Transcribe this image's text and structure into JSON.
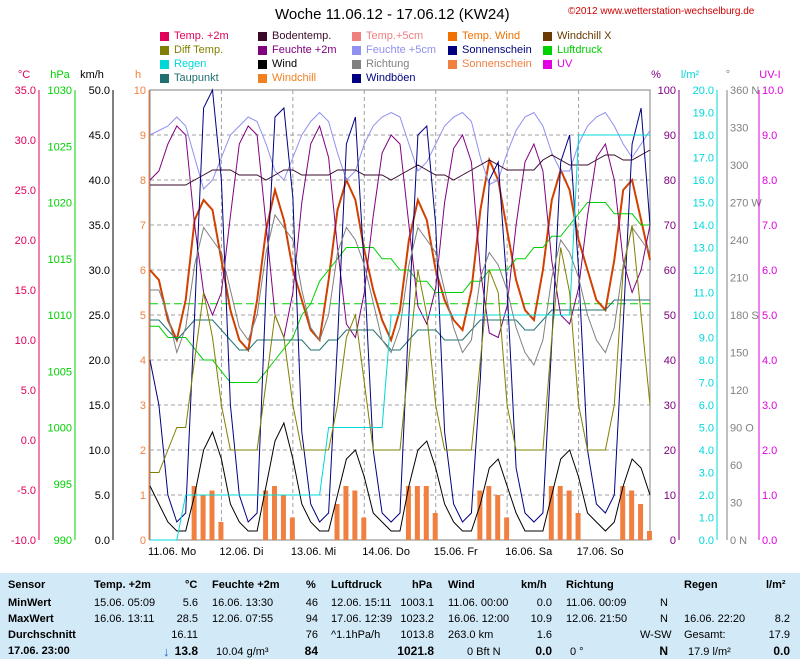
{
  "header": {
    "title": "Woche 11.06.12 - 17.06.12 (KW24)",
    "copyright": "©2012 www.wetterstation-wechselburg.de"
  },
  "legend": [
    {
      "label": "Temp. +2m",
      "color": "#e0005a"
    },
    {
      "label": "Bodentemp.",
      "color": "#3a0a2a"
    },
    {
      "label": "Temp.+5cm",
      "color": "#f08080"
    },
    {
      "label": "Temp. Wind",
      "color": "#f07000"
    },
    {
      "label": "Windchill X",
      "color": "#6a3a00"
    },
    {
      "label": "Diff Temp.",
      "color": "#808000"
    },
    {
      "label": "Feuchte +2m",
      "color": "#800080"
    },
    {
      "label": "Feuchte +5cm",
      "color": "#9090f0"
    },
    {
      "label": "Sonnenschein",
      "color": "#000080"
    },
    {
      "label": "Luftdruck",
      "color": "#00d000"
    },
    {
      "label": "Regen",
      "color": "#00d8d8"
    },
    {
      "label": "Wind",
      "color": "#000000"
    },
    {
      "label": "Richtung",
      "color": "#808080"
    },
    {
      "label": "Sonnenschein",
      "color": "#f08040"
    },
    {
      "label": "UV",
      "color": "#e000e0"
    },
    {
      "label": "Taupunkt",
      "color": "#207070"
    },
    {
      "label": "Windchill",
      "color": "#f08020"
    },
    {
      "label": "Windböen",
      "color": "#000080"
    }
  ],
  "chart_data": {
    "type": "line",
    "title": "Woche 11.06.12 - 17.06.12 (KW24)",
    "x_labels": [
      "11.06. Mo",
      "12.06. Di",
      "13.06. Mi",
      "14.06. Do",
      "15.06. Fr",
      "16.06. Sa",
      "17.06. So"
    ],
    "axes": {
      "temp": {
        "unit": "°C",
        "color": "#e0005a",
        "ticks": [
          "35.0",
          "30.0",
          "25.0",
          "20.0",
          "15.0",
          "10.0",
          "5.0",
          "0.0",
          "-5.0",
          "-10.0"
        ]
      },
      "pressure": {
        "unit": "hPa",
        "color": "#00d000",
        "ticks": [
          "1030",
          "1025",
          "1020",
          "1015",
          "1010",
          "1005",
          "1000",
          "995",
          "990"
        ]
      },
      "wind": {
        "unit": "km/h",
        "color": "#000000",
        "ticks": [
          "50.0",
          "45.0",
          "40.0",
          "35.0",
          "30.0",
          "25.0",
          "20.0",
          "15.0",
          "10.0",
          "5.0",
          "0.0"
        ]
      },
      "sun": {
        "unit": "h",
        "color": "#f08040",
        "ticks": [
          "10",
          "9",
          "8",
          "7",
          "6",
          "5",
          "4",
          "3",
          "2",
          "1",
          "0"
        ]
      },
      "humidity": {
        "unit": "%",
        "color": "#800080",
        "ticks": [
          "100",
          "90",
          "80",
          "70",
          "60",
          "50",
          "40",
          "30",
          "20",
          "10",
          "0"
        ]
      },
      "rain": {
        "unit": "l/m²",
        "color": "#00d8d8",
        "ticks": [
          "20.0",
          "19.0",
          "18.0",
          "17.0",
          "16.0",
          "15.0",
          "14.0",
          "13.0",
          "12.0",
          "11.0",
          "10.0",
          "9.0",
          "8.0",
          "7.0",
          "6.0",
          "5.0",
          "4.0",
          "3.0",
          "2.0",
          "1.0",
          "0.0"
        ]
      },
      "direction": {
        "unit": "°",
        "color": "#808080",
        "ticks": [
          "360 N",
          "330",
          "300",
          "270 W",
          "240",
          "210",
          "180 S",
          "150",
          "120",
          "90 O",
          "60",
          "30",
          "0 N"
        ]
      },
      "uv": {
        "unit": "UV-I",
        "color": "#e000e0",
        "ticks": [
          "10.0",
          "9.0",
          "8.0",
          "7.0",
          "6.0",
          "5.0",
          "4.0",
          "3.0",
          "2.0",
          "1.0",
          "0.0"
        ]
      }
    },
    "ylim_temp": [
      -10,
      35
    ],
    "series": [
      {
        "name": "Temp. +2m",
        "color": "#e0005a",
        "values": [
          17,
          16,
          12,
          10,
          14,
          22,
          24,
          23,
          18,
          13,
          10,
          9,
          14,
          21,
          25,
          22,
          17,
          14,
          11,
          10,
          16,
          23,
          26,
          24,
          19,
          15,
          12,
          10,
          13,
          20,
          24,
          22,
          17,
          14,
          12,
          11,
          15,
          23,
          28,
          26,
          21,
          16,
          13,
          12,
          17,
          24,
          27,
          25,
          20,
          17,
          14,
          13,
          18,
          25,
          26,
          22,
          18
        ]
      },
      {
        "name": "Luftdruck",
        "values": [
          1009,
          1009,
          1008,
          1008,
          1008,
          1007,
          1006,
          1006,
          1005,
          1004,
          1004,
          1004,
          1004,
          1005,
          1006,
          1007,
          1008,
          1010,
          1011,
          1013,
          1014,
          1015,
          1016,
          1016,
          1016,
          1016,
          1015,
          1015,
          1014,
          1014,
          1013,
          1013,
          1012,
          1012,
          1012,
          1012,
          1013,
          1013,
          1014,
          1014,
          1014,
          1015,
          1015,
          1016,
          1016,
          1017,
          1017,
          1018,
          1019,
          1020,
          1020,
          1020,
          1019,
          1019,
          1019,
          1018,
          1018
        ]
      },
      {
        "name": "Feuchte +2m",
        "values": [
          80,
          82,
          88,
          92,
          90,
          70,
          55,
          50,
          55,
          72,
          88,
          92,
          90,
          70,
          50,
          45,
          55,
          75,
          88,
          92,
          85,
          65,
          48,
          45,
          55,
          72,
          86,
          90,
          88,
          70,
          52,
          48,
          56,
          75,
          87,
          90,
          84,
          60,
          46,
          45,
          52,
          70,
          84,
          88,
          82,
          62,
          50,
          48,
          56,
          72,
          85,
          88,
          80,
          62,
          55,
          60,
          70
        ]
      },
      {
        "name": "Feuchte +5cm",
        "values": [
          90,
          91,
          92,
          94,
          92,
          85,
          78,
          80,
          85,
          90,
          92,
          94,
          93,
          88,
          82,
          80,
          85,
          90,
          93,
          95,
          93,
          86,
          80,
          82,
          88,
          92,
          94,
          95,
          94,
          88,
          82,
          84,
          88,
          92,
          94,
          95,
          93,
          85,
          79,
          80,
          86,
          91,
          94,
          95,
          92,
          86,
          82,
          82,
          88,
          92,
          94,
          95,
          92,
          88,
          85,
          88,
          91
        ]
      },
      {
        "name": "Bodentemp.",
        "values": [
          25.5,
          25.5,
          25.5,
          25.5,
          25.5,
          26,
          26.5,
          27,
          27,
          27,
          26.5,
          26.5,
          26.5,
          26,
          26.5,
          27,
          27,
          26.5,
          26.5,
          26.5,
          26.5,
          27,
          27,
          27,
          26.5,
          26.5,
          26.5,
          26,
          26.5,
          27,
          27.5,
          27,
          26.5,
          26.5,
          26,
          26.5,
          27,
          27.5,
          28,
          27.5,
          27,
          27,
          27,
          27,
          28,
          28.5,
          28,
          27.5,
          27.5,
          27.5,
          28,
          28.5,
          28.5,
          28,
          28,
          28.5,
          29
        ]
      },
      {
        "name": "Taupunkt",
        "values": [
          12,
          12,
          11,
          10,
          11,
          12,
          12,
          12,
          11,
          10,
          9,
          9,
          10,
          10,
          10,
          10,
          10,
          10,
          9,
          9,
          10,
          10,
          11,
          11,
          11,
          11,
          10,
          9,
          9,
          10,
          11,
          11,
          11,
          10,
          10,
          10,
          11,
          12,
          12,
          12,
          12,
          12,
          11,
          11,
          12,
          13,
          13,
          13,
          13,
          13,
          13,
          13,
          14,
          14,
          14,
          14,
          14
        ]
      },
      {
        "name": "Wind",
        "values": [
          6,
          4,
          2,
          1,
          1,
          5,
          10,
          12,
          9,
          4,
          2,
          1,
          1,
          6,
          11,
          13,
          9,
          4,
          2,
          1,
          1,
          5,
          9,
          10,
          7,
          3,
          2,
          1,
          1,
          6,
          10,
          11,
          8,
          4,
          2,
          1,
          1,
          4,
          8,
          9,
          6,
          3,
          1,
          1,
          1,
          5,
          9,
          10,
          7,
          3,
          2,
          1,
          2,
          6,
          9,
          8,
          5
        ]
      },
      {
        "name": "Windböen",
        "values": [
          20,
          15,
          5,
          2,
          3,
          25,
          48,
          50,
          40,
          15,
          5,
          2,
          3,
          28,
          47,
          48,
          38,
          12,
          4,
          2,
          3,
          22,
          44,
          47,
          30,
          10,
          3,
          2,
          3,
          25,
          45,
          46,
          35,
          12,
          4,
          2,
          3,
          18,
          40,
          42,
          28,
          8,
          3,
          2,
          3,
          22,
          42,
          45,
          30,
          10,
          4,
          3,
          5,
          24,
          44,
          48,
          35
        ]
      },
      {
        "name": "Richtung",
        "values": [
          200,
          200,
          180,
          150,
          170,
          220,
          250,
          240,
          230,
          200,
          170,
          160,
          180,
          230,
          260,
          250,
          240,
          200,
          170,
          160,
          180,
          230,
          250,
          240,
          220,
          190,
          160,
          150,
          170,
          220,
          250,
          240,
          230,
          200,
          170,
          150,
          160,
          210,
          230,
          220,
          200,
          170,
          150,
          140,
          160,
          210,
          240,
          230,
          210,
          180,
          160,
          150,
          170,
          220,
          250,
          240,
          230
        ]
      },
      {
        "name": "Sonnenschein",
        "values": [
          0,
          0,
          0,
          0,
          0,
          1.2,
          1,
          1.1,
          0.4,
          0,
          0,
          0,
          0,
          1.1,
          1.2,
          1,
          0.5,
          0,
          0,
          0,
          0,
          0.8,
          1.2,
          1.1,
          0.5,
          0,
          0,
          0,
          0,
          1.2,
          1.2,
          1.2,
          0.6,
          0,
          0,
          0,
          0,
          1.1,
          1.2,
          1,
          0.5,
          0,
          0,
          0,
          0,
          1.2,
          1.2,
          1.1,
          0.6,
          0,
          0,
          0,
          0,
          1.2,
          1.1,
          0.8,
          0.2
        ]
      },
      {
        "name": "Regen",
        "values": [
          0,
          0,
          0,
          0,
          2,
          2,
          2,
          2,
          2,
          2,
          2,
          2,
          2,
          2,
          2,
          2,
          2,
          2,
          2,
          2,
          5,
          5,
          5,
          5,
          5,
          5,
          5,
          10,
          10,
          10,
          10,
          10,
          10,
          10,
          10,
          10,
          10,
          10,
          10,
          10,
          10,
          10,
          10,
          10,
          10,
          10,
          10,
          10,
          18,
          18,
          18,
          18,
          18,
          18,
          18,
          18,
          18
        ]
      },
      {
        "name": "Diff Temp.",
        "values": [
          1.5,
          1.5,
          2,
          2.5,
          2.5,
          4,
          5.5,
          4.5,
          3,
          2,
          2,
          2,
          2,
          3.5,
          5,
          4.5,
          3,
          2,
          2,
          2,
          2,
          3,
          4.5,
          5,
          3.5,
          2,
          2,
          2,
          2,
          4,
          6,
          5,
          3,
          2,
          2,
          2,
          2,
          4,
          6,
          5.5,
          3,
          2,
          2,
          2,
          2,
          4.5,
          6.5,
          5.5,
          3,
          2,
          2,
          2,
          3,
          6,
          7,
          5,
          3
        ]
      }
    ]
  },
  "table": {
    "headers": [
      "Sensor",
      "Temp. +2m",
      "°C",
      "Feuchte +2m",
      "%",
      "Luftdruck",
      "hPa",
      "Wind",
      "km/h",
      "Richtung",
      "",
      "Regen",
      "l/m²"
    ],
    "rows": [
      {
        "label": "MinWert",
        "temp_dt": "15.06.  05:09",
        "temp_v": "5.6",
        "hum_dt": "16.06.  13:30",
        "hum_v": "46",
        "pres_dt": "12.06.  15:11",
        "pres_v": "1003.1",
        "wind_dt": "11.06.  00:00",
        "wind_v": "0.0",
        "dir_dt": "11.06.  00:09",
        "dir_v": "N",
        "rain_dt": "",
        "rain_v": ""
      },
      {
        "label": "MaxWert",
        "temp_dt": "16.06.  13:11",
        "temp_v": "28.5",
        "hum_dt": "12.06.  07:55",
        "hum_v": "94",
        "pres_dt": "17.06.  12:39",
        "pres_v": "1023.2",
        "wind_dt": "16.06.  12:00",
        "wind_v": "10.9",
        "dir_dt": "12.06.  21:50",
        "dir_v": "N",
        "rain_dt": "16.06.  22:20",
        "rain_v": "8.2"
      },
      {
        "label": "Durchschnitt",
        "temp_dt": "",
        "temp_v": "16.11",
        "hum_dt": "",
        "hum_v": "76",
        "pres_dt": "^1.1hPa/h",
        "pres_v": "1013.8",
        "wind_dt": "263.0 km",
        "wind_v": "1.6",
        "dir_dt": "",
        "dir_v": "W-SW",
        "rain_dt": "Gesamt:",
        "rain_v": "17.9"
      }
    ],
    "current": {
      "label": "17.06. 23:00",
      "temp_arrow": "↓",
      "temp_v": "13.8",
      "hum_dt": "10.04 g/m³",
      "hum_v": "84",
      "pres_v": "1021.8",
      "wind_dt": "0 Bft N",
      "wind_v": "0.0",
      "dir_dt": "0 °",
      "dir_v": "N",
      "rain_dt": "17.9 l/m²",
      "rain_v": "0.0"
    }
  }
}
